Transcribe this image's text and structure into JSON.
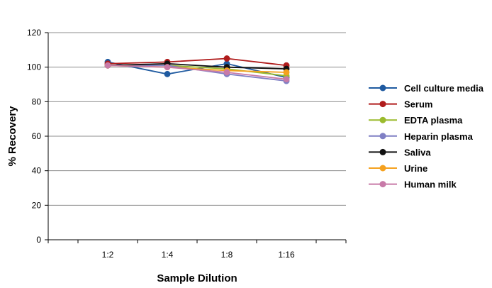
{
  "chart_data": {
    "type": "line",
    "title": "",
    "xlabel": "Sample Dilution",
    "ylabel": "% Recovery",
    "categories": [
      "1:2",
      "1:4",
      "1:8",
      "1:16"
    ],
    "ylim": [
      0,
      120
    ],
    "yticks": [
      0,
      20,
      40,
      60,
      80,
      100,
      120
    ],
    "grid": true,
    "legend_position": "right",
    "series": [
      {
        "name": "Cell culture media",
        "color": "#1f5aa0",
        "values": [
          103,
          96,
          102,
          94
        ]
      },
      {
        "name": "Serum",
        "color": "#b01c1c",
        "values": [
          102,
          103,
          105,
          101
        ]
      },
      {
        "name": "EDTA plasma",
        "color": "#9bbb2e",
        "values": [
          101,
          101,
          99,
          95
        ]
      },
      {
        "name": "Heparin plasma",
        "color": "#7f7fc4",
        "values": [
          101,
          101,
          96,
          92
        ]
      },
      {
        "name": "Saliva",
        "color": "#111111",
        "values": [
          101,
          102,
          100,
          99
        ]
      },
      {
        "name": "Urine",
        "color": "#f5a11e",
        "values": [
          101,
          100,
          98,
          97
        ]
      },
      {
        "name": "Human milk",
        "color": "#c87aa8",
        "values": [
          101,
          100,
          97,
          93
        ]
      }
    ]
  }
}
